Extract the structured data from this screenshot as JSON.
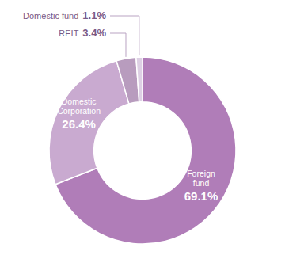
{
  "chart_data": {
    "type": "donut",
    "categories": [
      "Foreign fund",
      "Domestic Corporation",
      "REIT",
      "Domestic fund"
    ],
    "values": [
      69.1,
      26.4,
      3.4,
      1.1
    ],
    "value_labels": [
      "69.1%",
      "26.4%",
      "3.4%",
      "1.1%"
    ],
    "colors": [
      "#b07db8",
      "#c9aad0",
      "#b89cbe",
      "#ddd0e4"
    ],
    "data_labels": true
  }
}
